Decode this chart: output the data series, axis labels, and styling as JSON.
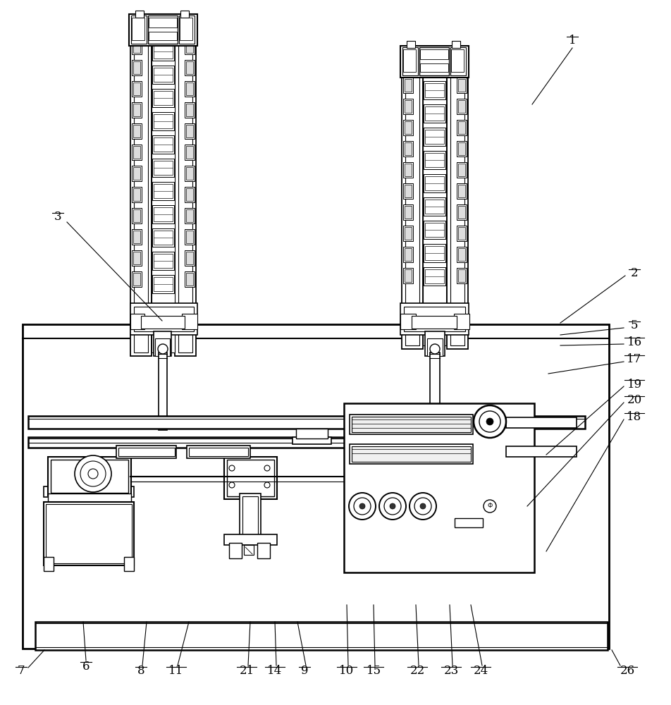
{
  "bg_color": "#ffffff",
  "line_color": "#000000",
  "labels_data": [
    [
      "1",
      812,
      58,
      812,
      68,
      755,
      148
    ],
    [
      "2",
      900,
      388,
      887,
      391,
      795,
      458
    ],
    [
      "3",
      82,
      308,
      95,
      315,
      230,
      455
    ],
    [
      "5",
      900,
      462,
      885,
      465,
      795,
      475
    ],
    [
      "6",
      122,
      945,
      122,
      937,
      118,
      882
    ],
    [
      "7",
      30,
      952,
      40,
      947,
      63,
      922
    ],
    [
      "8",
      200,
      952,
      202,
      944,
      208,
      882
    ],
    [
      "9",
      432,
      952,
      434,
      944,
      422,
      882
    ],
    [
      "10",
      492,
      952,
      494,
      944,
      492,
      858
    ],
    [
      "11",
      250,
      952,
      252,
      944,
      268,
      882
    ],
    [
      "14",
      390,
      952,
      392,
      944,
      390,
      882
    ],
    [
      "15",
      530,
      952,
      532,
      944,
      530,
      858
    ],
    [
      "16",
      900,
      485,
      885,
      488,
      795,
      490
    ],
    [
      "17",
      900,
      510,
      885,
      513,
      778,
      530
    ],
    [
      "18",
      900,
      592,
      885,
      595,
      775,
      782
    ],
    [
      "19",
      900,
      545,
      885,
      548,
      775,
      645
    ],
    [
      "20",
      900,
      568,
      885,
      571,
      748,
      718
    ],
    [
      "21",
      350,
      952,
      352,
      944,
      355,
      882
    ],
    [
      "22",
      592,
      952,
      594,
      944,
      590,
      858
    ],
    [
      "23",
      640,
      952,
      642,
      944,
      638,
      858
    ],
    [
      "24",
      682,
      952,
      684,
      944,
      668,
      858
    ],
    [
      "26",
      890,
      952,
      880,
      944,
      868,
      922
    ]
  ]
}
